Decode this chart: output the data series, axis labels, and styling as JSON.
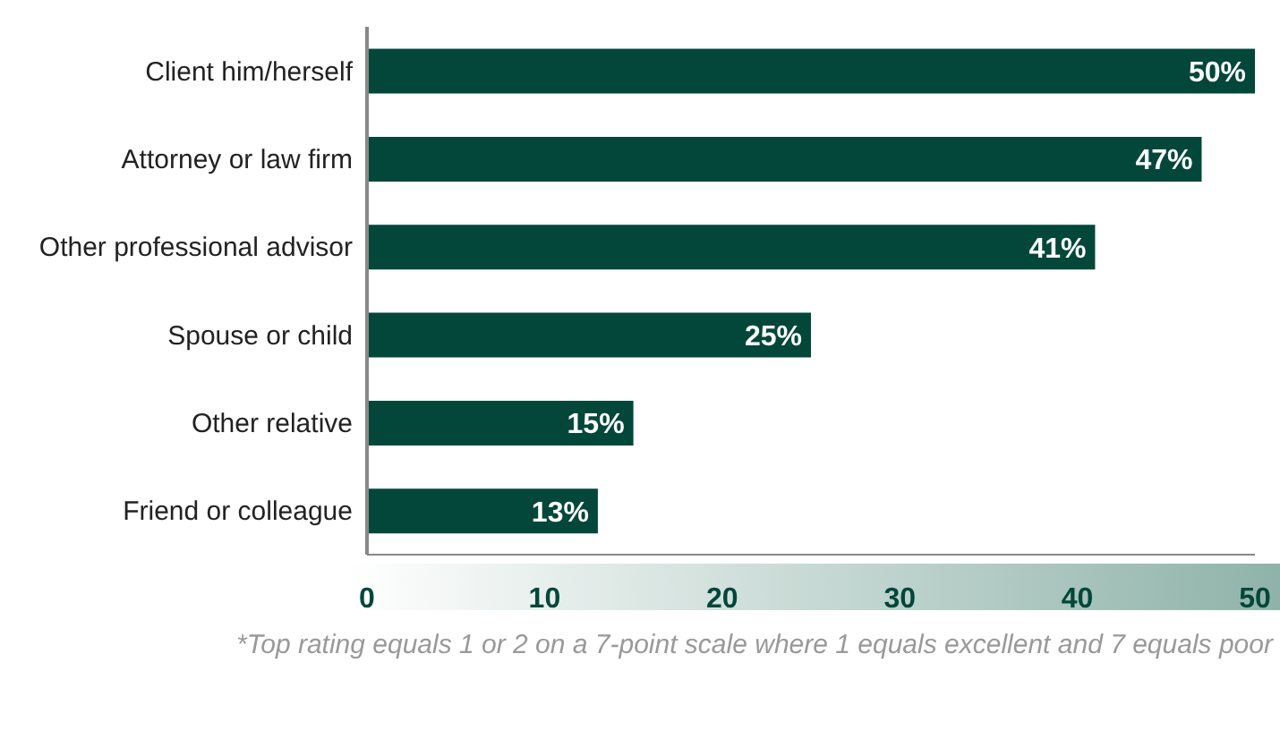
{
  "chart_data": {
    "type": "bar",
    "orientation": "horizontal",
    "categories": [
      "Client him/herself",
      "Attorney or law firm",
      "Other professional advisor",
      "Spouse or child",
      "Other relative",
      "Friend or colleague"
    ],
    "values": [
      50,
      47,
      41,
      25,
      15,
      13
    ],
    "color": "#02473a",
    "value_labels": [
      "50%",
      "47%",
      "41%",
      "25%",
      "15%",
      "13%"
    ],
    "xlim": [
      0,
      50
    ],
    "xticks": [
      0,
      10,
      20,
      30,
      40,
      50
    ],
    "grid": false,
    "legend": false,
    "annotations": [
      "*Top rating equals 1 or 2 on a 7-point scale where 1 equals excellent and 7 equals poor"
    ]
  }
}
